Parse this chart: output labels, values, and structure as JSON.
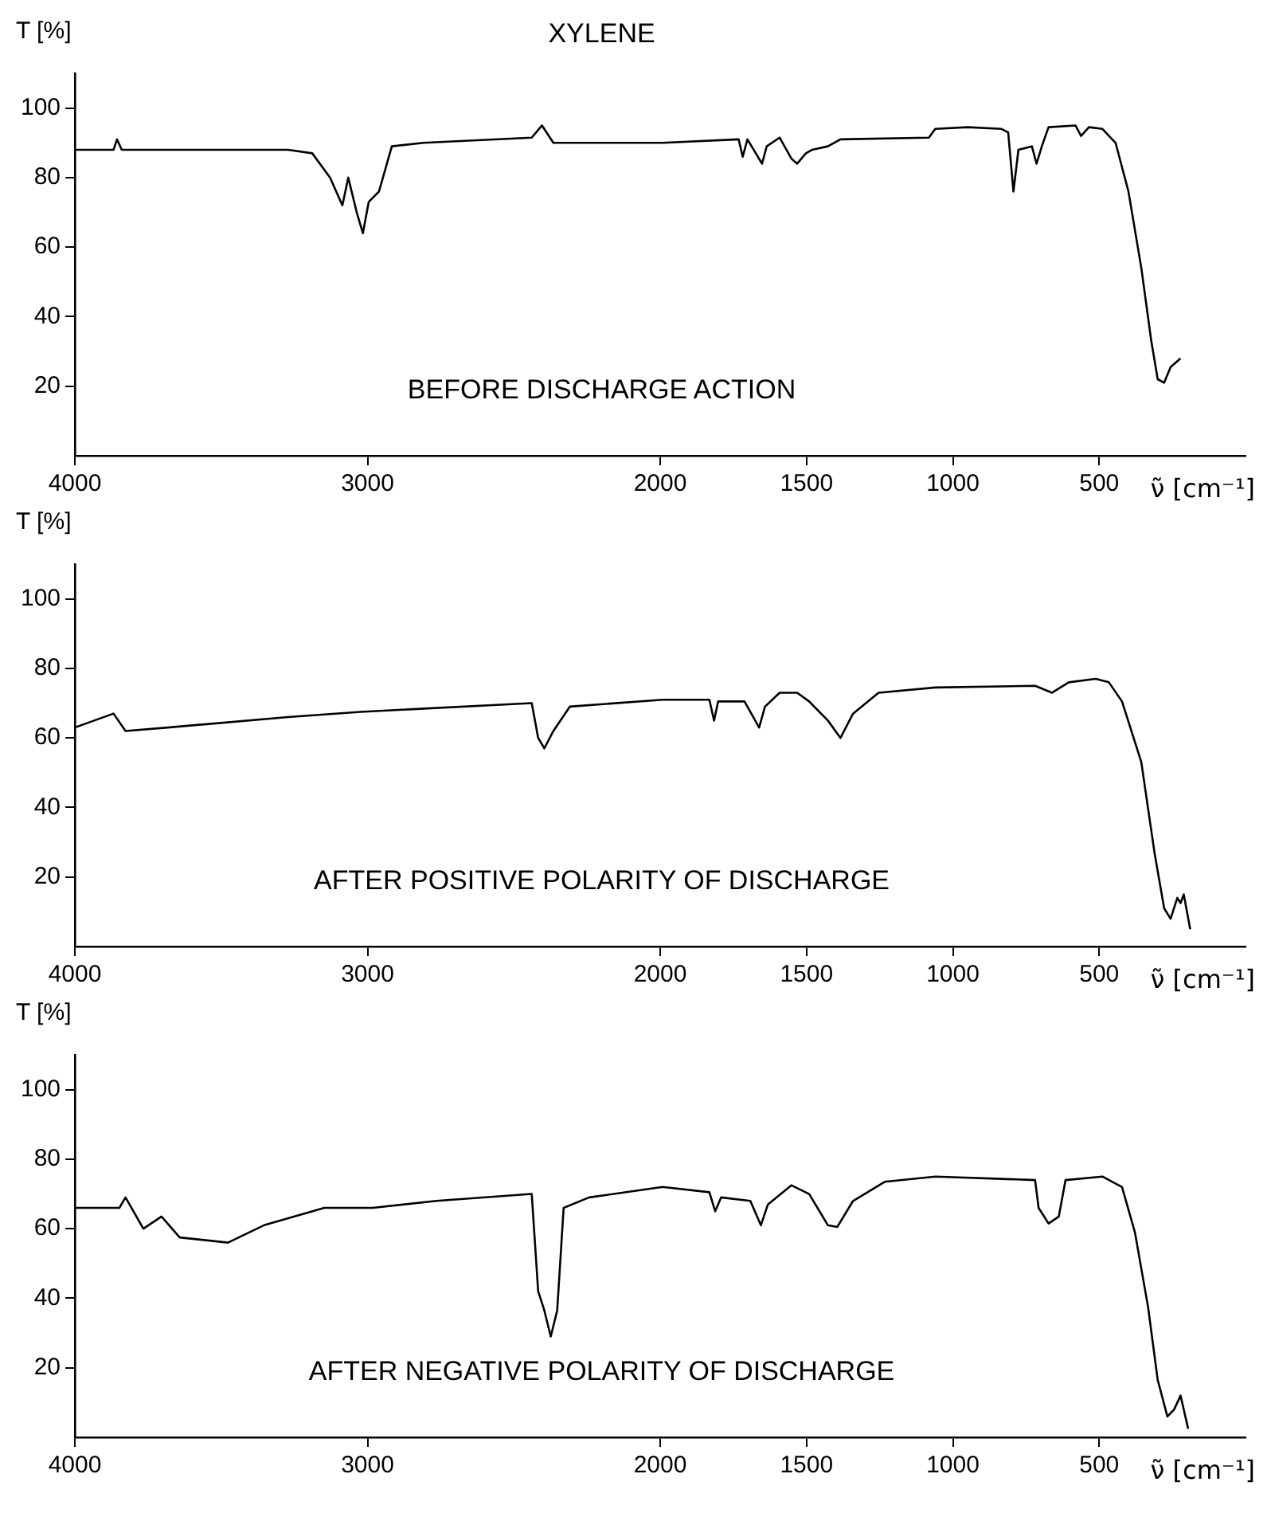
{
  "chart_data": [
    {
      "type": "line",
      "title": "XYLENE",
      "ylabel": "T [%]",
      "xlabel": "ν̃ [cm⁻¹]",
      "annotations": [
        "BEFORE DISCHARGE ACTION"
      ],
      "color": "#000000",
      "xlim": [
        4000,
        0
      ],
      "xticks": [
        4000,
        3000,
        2000,
        1500,
        1000,
        500
      ],
      "ylim": [
        0,
        110
      ],
      "yticks": [
        20,
        40,
        60,
        80,
        100
      ],
      "grid": false,
      "x": [
        4000,
        3868,
        3856,
        3840,
        3272,
        3189,
        3128,
        3086,
        3066,
        3037,
        3016,
        2996,
        2961,
        2917,
        2809,
        2439,
        2404,
        2365,
        1992,
        1732,
        1718,
        1702,
        1652,
        1636,
        1592,
        1552,
        1532,
        1502,
        1481,
        1427,
        1384,
        1082,
        1060,
        949,
        834,
        811,
        793,
        776,
        730,
        714,
        696,
        673,
        581,
        562,
        535,
        489,
        444,
        400,
        356,
        322,
        300,
        278,
        256,
        222
      ],
      "values": [
        88,
        88,
        91,
        88,
        88,
        87,
        80,
        72,
        80,
        70,
        64,
        73,
        76,
        89,
        90,
        91.5,
        95,
        90,
        90,
        91,
        86,
        91,
        84,
        89,
        91.5,
        85.5,
        84,
        87,
        88,
        89,
        91,
        91.5,
        94,
        94.5,
        94,
        93,
        76,
        88,
        89,
        84,
        89,
        94.5,
        95,
        92,
        94.5,
        94,
        90,
        76,
        54,
        33,
        22,
        21,
        25.5,
        28
      ]
    },
    {
      "type": "line",
      "ylabel": "T [%]",
      "xlabel": "ν̃ [cm⁻¹]",
      "annotations": [
        "AFTER POSITIVE POLARITY OF DISCHARGE"
      ],
      "color": "#000000",
      "xlim": [
        4000,
        0
      ],
      "xticks": [
        4000,
        3000,
        2000,
        1500,
        1000,
        500
      ],
      "ylim": [
        0,
        110
      ],
      "yticks": [
        20,
        40,
        60,
        80,
        100
      ],
      "grid": false,
      "x": [
        4000,
        3868,
        3827,
        3683,
        3272,
        3025,
        2439,
        2417,
        2396,
        2365,
        2309,
        1992,
        1832,
        1816,
        1802,
        1712,
        1662,
        1642,
        1592,
        1532,
        1491,
        1427,
        1384,
        1341,
        1254,
        1060,
        719,
        661,
        604,
        512,
        467,
        422,
        356,
        311,
        278,
        256,
        233,
        222,
        211,
        189
      ],
      "values": [
        63,
        67,
        62,
        63,
        66,
        67.5,
        70,
        60,
        57,
        62,
        69,
        71,
        71,
        65,
        70.5,
        70.5,
        63,
        69,
        73,
        73,
        70.5,
        65,
        60,
        67,
        73,
        74.5,
        75,
        73,
        76,
        77,
        76,
        70.5,
        53,
        27,
        11,
        8,
        14,
        12.5,
        15,
        5
      ]
    },
    {
      "type": "line",
      "ylabel": "T [%]",
      "xlabel": "ν̃ [cm⁻¹]",
      "annotations": [
        "AFTER NEGATIVE POLARITY OF DISCHARGE"
      ],
      "color": "#000000",
      "xlim": [
        4000,
        0
      ],
      "xticks": [
        4000,
        3000,
        2000,
        1500,
        1000,
        500
      ],
      "ylim": [
        0,
        110
      ],
      "yticks": [
        20,
        40,
        60,
        80,
        100
      ],
      "grid": false,
      "x": [
        4000,
        3848,
        3827,
        3766,
        3704,
        3642,
        3477,
        3354,
        3148,
        2983,
        2765,
        2439,
        2417,
        2396,
        2374,
        2352,
        2330,
        2243,
        1992,
        1832,
        1812,
        1792,
        1692,
        1656,
        1632,
        1552,
        1491,
        1427,
        1395,
        1341,
        1233,
        1060,
        719,
        707,
        673,
        638,
        615,
        489,
        422,
        378,
        333,
        300,
        267,
        244,
        222,
        196
      ],
      "values": [
        66,
        66,
        69,
        60,
        63.5,
        57.5,
        56,
        61,
        66,
        66,
        68,
        70,
        42,
        36.5,
        29,
        36.5,
        66,
        69,
        72,
        70.5,
        65,
        69,
        68,
        61,
        67,
        72.5,
        70,
        61,
        60.5,
        68,
        73.5,
        75,
        74,
        66,
        61.5,
        63.5,
        74,
        75,
        72,
        59,
        37.5,
        16.5,
        6,
        8,
        12,
        2.5
      ]
    }
  ]
}
